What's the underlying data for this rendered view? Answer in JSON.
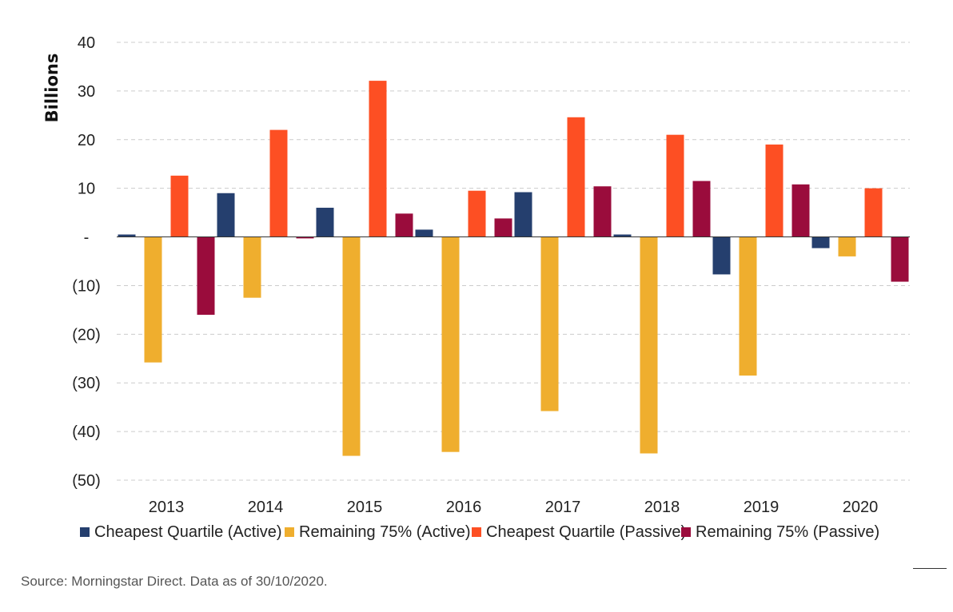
{
  "chart_data": {
    "type": "bar",
    "ylabel": "Billions",
    "ylim": [
      -50,
      40
    ],
    "yticks": [
      40,
      30,
      20,
      10,
      0,
      -10,
      -20,
      -30,
      -40,
      -50
    ],
    "ytick_labels": [
      "40",
      "30",
      "20",
      "10",
      "-",
      "(10)",
      "(20)",
      "(30)",
      "(40)",
      "(50)"
    ],
    "grid": true,
    "legend_position": "bottom",
    "categories": [
      "2013",
      "2014",
      "2015",
      "2016",
      "2017",
      "2018",
      "2019",
      "2020"
    ],
    "series": [
      {
        "name": "Cheapest Quartile (Active)",
        "color": "#253f6e",
        "values": [
          0.5,
          9.0,
          6.0,
          1.5,
          9.2,
          0.5,
          -7.7,
          -2.3
        ]
      },
      {
        "name": "Remaining 75% (Active)",
        "color": "#efae2e",
        "values": [
          -25.8,
          -12.5,
          -45.0,
          -44.2,
          -35.8,
          -44.5,
          -28.5,
          -4.0
        ]
      },
      {
        "name": "Cheapest Quartile (Passive)",
        "color": "#fd4f23",
        "values": [
          12.6,
          22.0,
          32.1,
          9.5,
          24.6,
          21.0,
          19.0,
          10.0
        ]
      },
      {
        "name": "Remaining 75% (Passive)",
        "color": "#9a0c3c",
        "values": [
          -16.0,
          -0.3,
          4.8,
          3.8,
          10.4,
          11.5,
          10.8,
          -9.2
        ]
      }
    ]
  },
  "source": "Source: Morningstar Direct. Data as of 30/10/2020."
}
